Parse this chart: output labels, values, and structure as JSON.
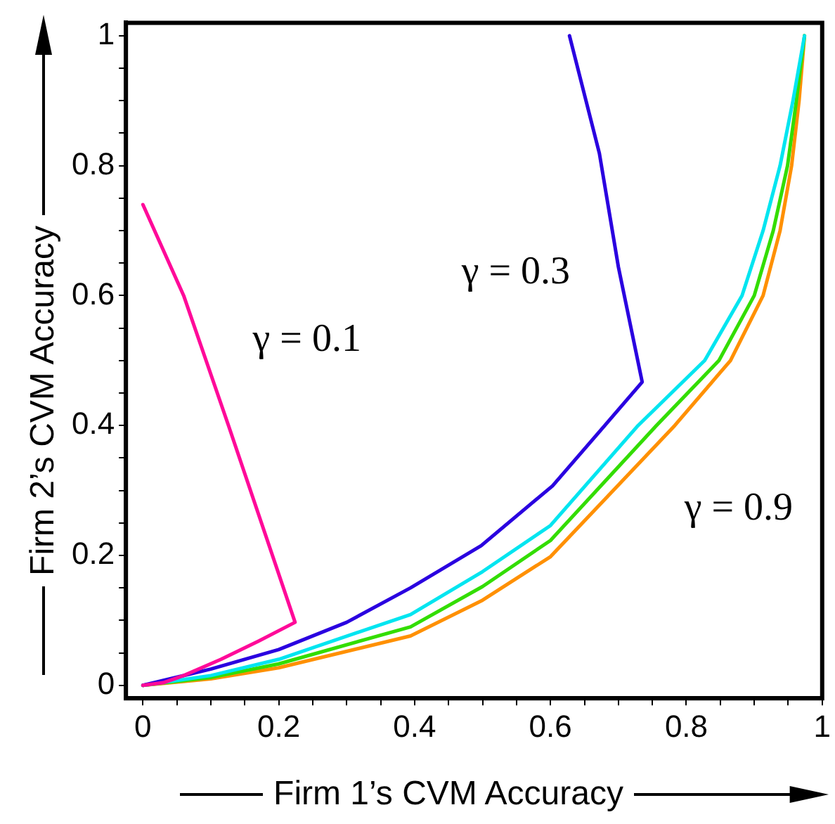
{
  "chart_data": {
    "type": "line",
    "xlabel": "Firm 1’s CVM Accuracy",
    "ylabel": "Firm 2’s CVM Accuracy",
    "xlim": [
      -0.025,
      1
    ],
    "ylim": [
      -0.02,
      1.02
    ],
    "xticks": [
      0,
      {
        "value": 0.05,
        "label": null
      },
      {
        "value": 0.1,
        "label": null
      },
      {
        "value": 0.15,
        "label": null
      },
      0.2,
      {
        "value": 0.25,
        "label": null
      },
      {
        "value": 0.3,
        "label": null
      },
      {
        "value": 0.35,
        "label": null
      },
      0.4,
      {
        "value": 0.45,
        "label": null
      },
      {
        "value": 0.5,
        "label": null
      },
      {
        "value": 0.55,
        "label": null
      },
      0.6,
      {
        "value": 0.65,
        "label": null
      },
      {
        "value": 0.7,
        "label": null
      },
      {
        "value": 0.75,
        "label": null
      },
      0.8,
      {
        "value": 0.85,
        "label": null
      },
      {
        "value": 0.9,
        "label": null
      },
      {
        "value": 0.95,
        "label": null
      },
      1
    ],
    "yticks": [
      0,
      {
        "value": 0.05,
        "label": null
      },
      {
        "value": 0.1,
        "label": null
      },
      {
        "value": 0.15,
        "label": null
      },
      0.2,
      {
        "value": 0.25,
        "label": null
      },
      {
        "value": 0.3,
        "label": null
      },
      {
        "value": 0.35,
        "label": null
      },
      0.4,
      {
        "value": 0.45,
        "label": null
      },
      {
        "value": 0.5,
        "label": null
      },
      {
        "value": 0.55,
        "label": null
      },
      0.6,
      {
        "value": 0.65,
        "label": null
      },
      {
        "value": 0.7,
        "label": null
      },
      {
        "value": 0.75,
        "label": null
      },
      0.8,
      {
        "value": 0.85,
        "label": null
      },
      {
        "value": 0.9,
        "label": null
      },
      {
        "value": 0.95,
        "label": null
      },
      1
    ],
    "grid": false,
    "legend": false,
    "marker": "none",
    "line_style": "solid",
    "series": [
      {
        "color": "#ff0a99",
        "x": [
          0,
          0.03,
          0.06,
          0.115,
          0.17,
          0.224,
          0.126,
          0.06,
          0
        ],
        "values": [
          0,
          0.004,
          0.015,
          0.04,
          0.068,
          0.097,
          0.4,
          0.6,
          0.74
        ]
      },
      {
        "color": "#2a00e0",
        "x": [
          0,
          0.1,
          0.2,
          0.3,
          0.394,
          0.498,
          0.603,
          0.68,
          0.735,
          0.7,
          0.672,
          0.628
        ],
        "values": [
          0,
          0.025,
          0.055,
          0.097,
          0.15,
          0.215,
          0.307,
          0.4,
          0.467,
          0.644,
          0.819,
          1.0
        ]
      },
      {
        "color": "#00e5f0",
        "x": [
          0,
          0.1,
          0.2,
          0.394,
          0.5,
          0.6,
          0.729,
          0.827,
          0.882,
          0.913,
          0.938,
          0.957,
          0.974
        ],
        "values": [
          0,
          0.015,
          0.04,
          0.109,
          0.175,
          0.246,
          0.4,
          0.5,
          0.6,
          0.7,
          0.8,
          0.9,
          1.0
        ]
      },
      {
        "color": "#33dd00",
        "x": [
          0,
          0.1,
          0.2,
          0.394,
          0.5,
          0.6,
          0.756,
          0.848,
          0.9,
          0.928,
          0.949,
          0.962,
          0.974
        ],
        "values": [
          0,
          0.012,
          0.033,
          0.09,
          0.152,
          0.223,
          0.4,
          0.5,
          0.6,
          0.7,
          0.8,
          0.9,
          1.0
        ]
      },
      {
        "color": "#ff9000",
        "x": [
          0,
          0.1,
          0.2,
          0.394,
          0.5,
          0.6,
          0.783,
          0.865,
          0.913,
          0.938,
          0.955,
          0.966,
          0.974
        ],
        "values": [
          0,
          0.01,
          0.027,
          0.076,
          0.131,
          0.198,
          0.4,
          0.5,
          0.6,
          0.7,
          0.8,
          0.9,
          1.0
        ]
      }
    ],
    "annotations": [
      "γ = 0.1",
      "γ = 0.3",
      "γ = 0.9"
    ]
  }
}
